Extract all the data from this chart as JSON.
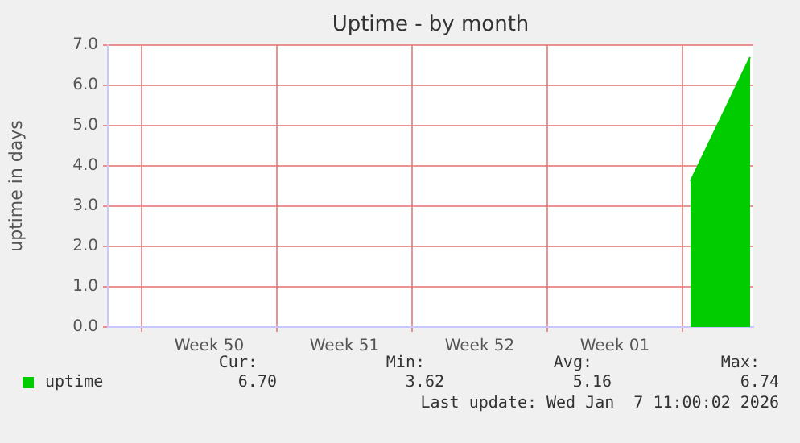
{
  "chart_data": {
    "type": "area",
    "title": "Uptime - by month",
    "ylabel": "uptime in days",
    "x": [
      "2026-01-05T10:00",
      "2026-01-08T12:00"
    ],
    "series": [
      {
        "name": "uptime",
        "color": "#00cc00",
        "values": [
          3.62,
          6.7
        ]
      }
    ],
    "xlim": [
      "2025-12-06T06:00",
      "2026-01-08T16:00"
    ],
    "xticks": [
      {
        "value": "2025-12-08",
        "label": null
      },
      {
        "value": "2025-12-11T12:00",
        "label": "Week 50"
      },
      {
        "value": "2025-12-15",
        "label": null
      },
      {
        "value": "2025-12-18T12:00",
        "label": "Week 51"
      },
      {
        "value": "2025-12-22",
        "label": null
      },
      {
        "value": "2025-12-25T12:00",
        "label": "Week 52"
      },
      {
        "value": "2025-12-29",
        "label": null
      },
      {
        "value": "2026-01-01T12:00",
        "label": "Week 01"
      },
      {
        "value": "2026-01-05",
        "label": null
      }
    ],
    "ylim": [
      0,
      7
    ],
    "yticks": [
      {
        "value": 0,
        "label": "0.0"
      },
      {
        "value": 1,
        "label": "1.0"
      },
      {
        "value": 2,
        "label": "2.0"
      },
      {
        "value": 3,
        "label": "3.0"
      },
      {
        "value": 4,
        "label": "4.0"
      },
      {
        "value": 5,
        "label": "5.0"
      },
      {
        "value": 6,
        "label": "6.0"
      },
      {
        "value": 7,
        "label": "7.0"
      }
    ],
    "grid": true,
    "legend": "bottom left",
    "annotations": [
      "Cur:",
      "Min:",
      "Avg:",
      "Max:",
      "6.70",
      "3.62",
      "5.16",
      "6.74",
      "Last update: Wed Jan  7 11:00:02 2026"
    ]
  }
}
